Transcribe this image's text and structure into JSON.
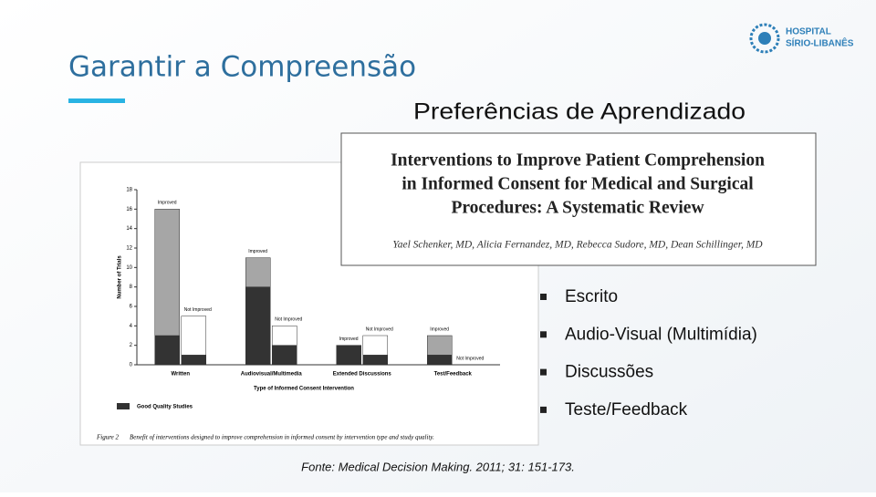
{
  "header": {
    "title": "Garantir a Compreensão",
    "logo_line1": "HOSPITAL",
    "logo_line2": "SÍRIO-LIBANÊS"
  },
  "subtitle": "Preferências de Aprendizado",
  "paper": {
    "title_lines": [
      "Interventions to Improve Patient Comprehension",
      "in Informed Consent for Medical and Surgical",
      "Procedures: A Systematic Review"
    ],
    "authors": "Yael Schenker, MD, Alicia Fernandez, MD, Rebecca Sudore, MD, Dean Schillinger, MD"
  },
  "chart_data": {
    "type": "bar",
    "stacked": true,
    "y_label": "Number of Trials",
    "x_label": "Type of Informed Consent Intervention",
    "legend": "Good Quality Studies",
    "good_color": "#333333",
    "improved_color": "#a6a6a6",
    "not_improved_color": "#ffffff",
    "ylim": [
      0,
      18
    ],
    "yticks": [
      0,
      2,
      4,
      6,
      8,
      10,
      12,
      14,
      16,
      18
    ],
    "groups": [
      {
        "category": "Written",
        "bars": [
          {
            "label": "Improved",
            "good": 3,
            "other": 13
          },
          {
            "label": "Not Improved",
            "good": 1,
            "other": 4
          }
        ]
      },
      {
        "category": "Audiovisual/Multimedia",
        "bars": [
          {
            "label": "Improved",
            "good": 8,
            "other": 3
          },
          {
            "label": "Not Improved",
            "good": 2,
            "other": 2
          }
        ]
      },
      {
        "category": "Extended Discussions",
        "bars": [
          {
            "label": "Improved",
            "good": 2,
            "other": 0
          },
          {
            "label": "Not Improved",
            "good": 1,
            "other": 2
          }
        ]
      },
      {
        "category": "Test/Feedback",
        "bars": [
          {
            "label": "Improved",
            "good": 1,
            "other": 2
          },
          {
            "label": "Not Improved",
            "good": 0,
            "other": 0
          }
        ]
      }
    ],
    "caption_label": "Figure 2",
    "caption": "Benefit of interventions designed to improve comprehension in informed consent by intervention type and study quality."
  },
  "bullets": [
    "Escrito",
    "Audio-Visual (Multimídia)",
    "Discussões",
    "Teste/Feedback"
  ],
  "source": "Fonte: Medical Decision Making. 2011; 31: 151-173."
}
